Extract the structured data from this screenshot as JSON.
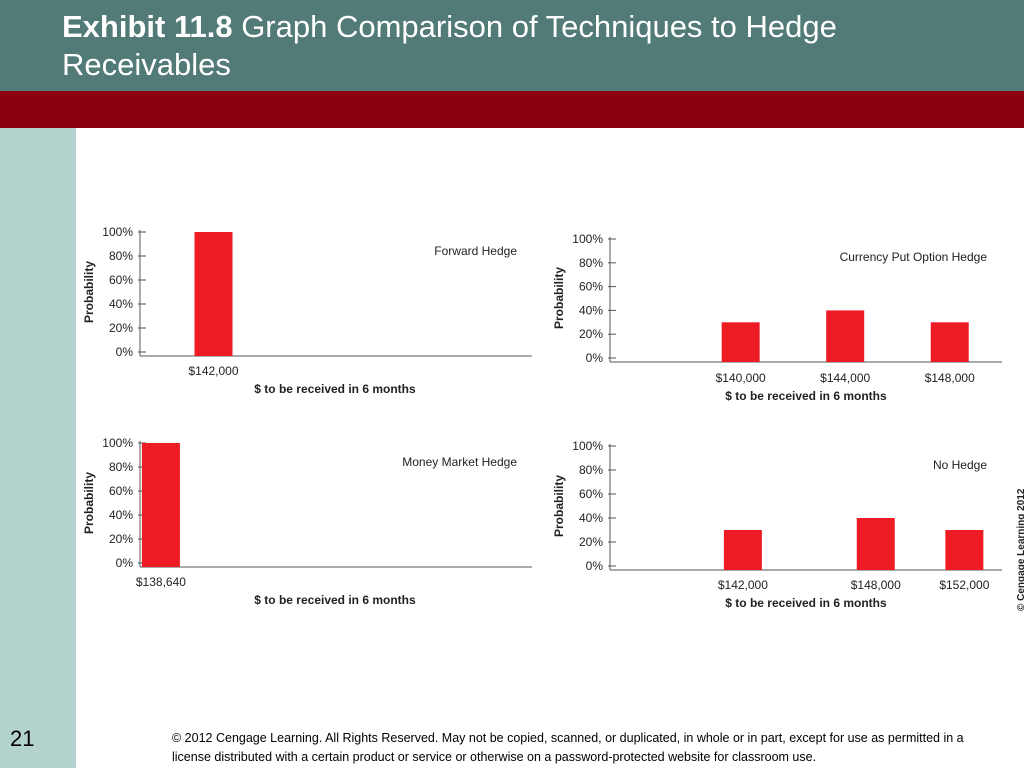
{
  "slide": {
    "title_bold": "Exhibit 11.8",
    "title_rest": " Graph Comparison of Techniques to Hedge Receivables",
    "number": "21",
    "footer": "© 2012 Cengage Learning. All Rights Reserved. May not be copied, scanned, or duplicated, in whole or in part, except for use as permitted in a license distributed with a certain product or service or otherwise on a password-protected website for classroom use.",
    "credit": "© Cengage Learning 2012",
    "colors": {
      "header": "#527a76",
      "band": "#8b0010",
      "sidebar": "#b4d3cf",
      "bar": "#ed1c24"
    }
  },
  "chart_data": [
    {
      "type": "bar",
      "title": "Forward Hedge",
      "xlabel": "$ to be received in 6 months",
      "ylabel": "Probability",
      "ylim": [
        0,
        100
      ],
      "yticks": [
        "0%",
        "20%",
        "40%",
        "60%",
        "80%",
        "100%"
      ],
      "x": [
        142000
      ],
      "labels": [
        "$142,000"
      ],
      "values": [
        100
      ]
    },
    {
      "type": "bar",
      "title": "Currency Put Option Hedge",
      "xlabel": "$ to be received in 6 months",
      "ylabel": "Probability",
      "ylim": [
        0,
        100
      ],
      "yticks": [
        "0%",
        "20%",
        "40%",
        "60%",
        "80%",
        "100%"
      ],
      "x": [
        140000,
        144000,
        148000
      ],
      "labels": [
        "$140,000",
        "$144,000",
        "$148,000"
      ],
      "values": [
        30,
        40,
        30
      ]
    },
    {
      "type": "bar",
      "title": "Money Market Hedge",
      "xlabel": "$ to be received in 6 months",
      "ylabel": "Probability",
      "ylim": [
        0,
        100
      ],
      "yticks": [
        "0%",
        "20%",
        "40%",
        "60%",
        "80%",
        "100%"
      ],
      "x": [
        138640
      ],
      "labels": [
        "$138,640"
      ],
      "values": [
        100
      ]
    },
    {
      "type": "bar",
      "title": "No Hedge",
      "xlabel": "$ to be received in 6 months",
      "ylabel": "Probability",
      "ylim": [
        0,
        100
      ],
      "yticks": [
        "0%",
        "20%",
        "40%",
        "60%",
        "80%",
        "100%"
      ],
      "x": [
        142000,
        148000,
        152000
      ],
      "labels": [
        "$142,000",
        "$148,000",
        "$152,000"
      ],
      "values": [
        30,
        40,
        30
      ]
    }
  ]
}
